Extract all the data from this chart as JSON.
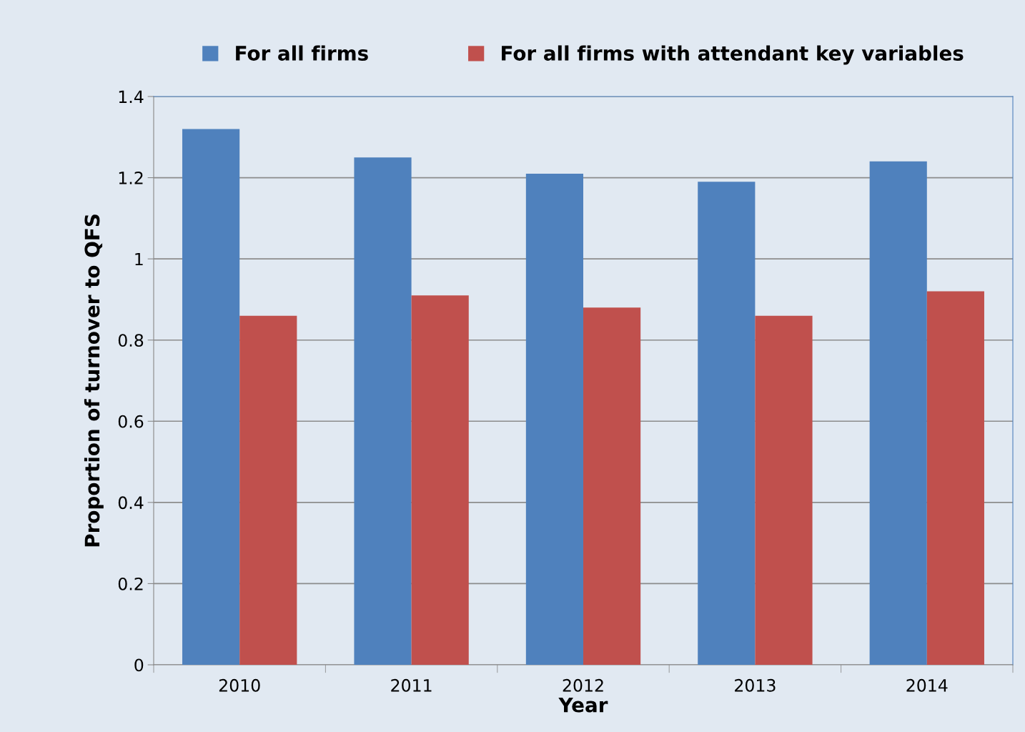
{
  "chart_data": {
    "type": "bar",
    "xlabel": "Year",
    "ylabel": "Proportion of turnover to QFS",
    "categories": [
      "2010",
      "2011",
      "2012",
      "2013",
      "2014"
    ],
    "series": [
      {
        "name": "For all firms",
        "color": "#4f81bd",
        "values": [
          1.32,
          1.25,
          1.21,
          1.19,
          1.24
        ]
      },
      {
        "name": "For all firms with attendant key variables",
        "color": "#c0504d",
        "values": [
          0.86,
          0.91,
          0.88,
          0.86,
          0.92
        ]
      }
    ],
    "ylim": [
      0,
      1.4
    ],
    "yticks": [
      0,
      0.2,
      0.4,
      0.6,
      0.8,
      1,
      1.2,
      1.4
    ],
    "grid": "y",
    "legend": "top"
  }
}
